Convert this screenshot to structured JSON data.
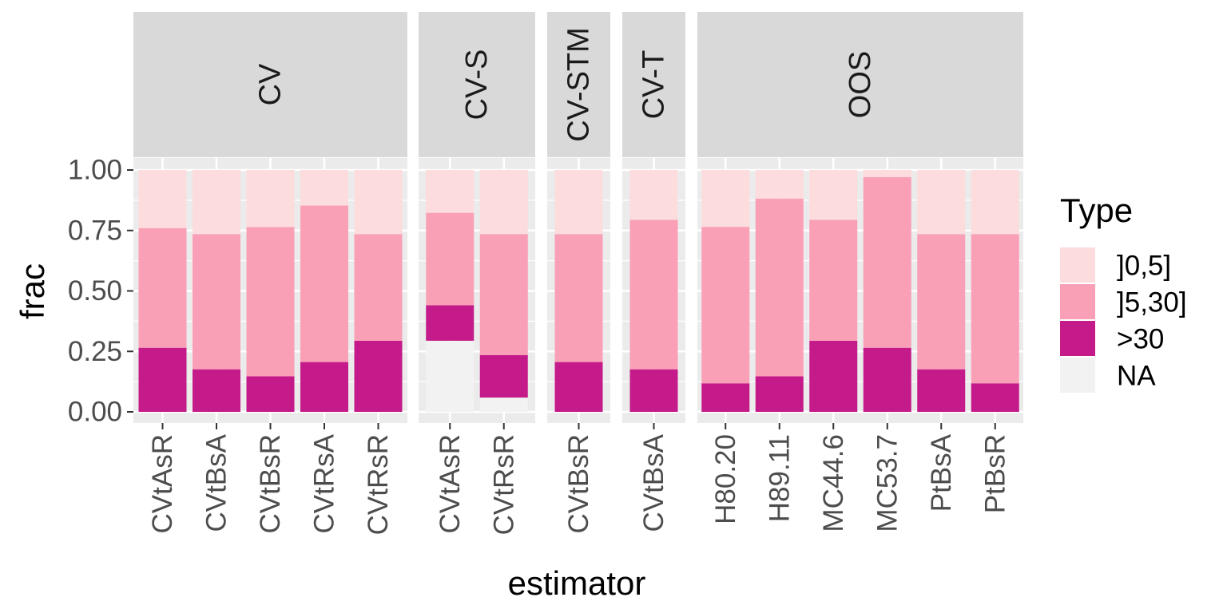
{
  "colors": {
    "panel_bg": "#EBEBEB",
    "strip_bg": "#D9D9D9",
    "grid": "#FFFFFF",
    "tick": "#333333",
    "type_0_5": "#FCDCDD",
    "type_5_30": "#F9A0B7",
    "type_gt30": "#C51B8A",
    "type_na": "#F2F2F2"
  },
  "chart_data": {
    "type": "bar",
    "stacked": true,
    "xlabel": "estimator",
    "ylabel": "frac",
    "ylim": [
      0,
      1
    ],
    "y_ticks": [
      "0.00",
      "0.25",
      "0.50",
      "0.75",
      "1.00"
    ],
    "legend": {
      "title": "Type",
      "position": "right",
      "entries": [
        {
          "label": "]0,5]",
          "color_key": "type_0_5"
        },
        {
          "label": "]5,30]",
          "color_key": "type_5_30"
        },
        {
          "label": ">30",
          "color_key": "type_gt30"
        },
        {
          "label": "NA",
          "color_key": "type_na"
        }
      ]
    },
    "facets": [
      {
        "label": "CV",
        "bars": [
          {
            "category": "CVtAsR",
            "gt30": 0.265,
            "b5_30": 0.495,
            "b0_5": 0.24,
            "na": 0
          },
          {
            "category": "CVtBsA",
            "gt30": 0.176,
            "b5_30": 0.559,
            "b0_5": 0.265,
            "na": 0
          },
          {
            "category": "CVtBsR",
            "gt30": 0.147,
            "b5_30": 0.617,
            "b0_5": 0.236,
            "na": 0
          },
          {
            "category": "CVtRsA",
            "gt30": 0.206,
            "b5_30": 0.647,
            "b0_5": 0.147,
            "na": 0
          },
          {
            "category": "CVtRsR",
            "gt30": 0.294,
            "b5_30": 0.441,
            "b0_5": 0.265,
            "na": 0
          }
        ]
      },
      {
        "label": "CV-S",
        "bars": [
          {
            "category": "CVtAsR",
            "na": 0.294,
            "gt30": 0.147,
            "b5_30": 0.382,
            "b0_5": 0.177
          },
          {
            "category": "CVtRsR",
            "na": 0.059,
            "gt30": 0.176,
            "b5_30": 0.5,
            "b0_5": 0.265
          }
        ]
      },
      {
        "label": "CV-STM",
        "bars": [
          {
            "category": "CVtBsR",
            "gt30": 0.206,
            "b5_30": 0.529,
            "b0_5": 0.265,
            "na": 0
          }
        ]
      },
      {
        "label": "CV-T",
        "bars": [
          {
            "category": "CVtBsA",
            "gt30": 0.176,
            "b5_30": 0.618,
            "b0_5": 0.206,
            "na": 0
          }
        ]
      },
      {
        "label": "OOS",
        "bars": [
          {
            "category": "H80.20",
            "gt30": 0.118,
            "b5_30": 0.647,
            "b0_5": 0.235,
            "na": 0
          },
          {
            "category": "H89.11",
            "gt30": 0.147,
            "b5_30": 0.735,
            "b0_5": 0.118,
            "na": 0
          },
          {
            "category": "MC44.6",
            "gt30": 0.294,
            "b5_30": 0.5,
            "b0_5": 0.206,
            "na": 0
          },
          {
            "category": "MC53.7",
            "gt30": 0.265,
            "b5_30": 0.706,
            "b0_5": 0.029,
            "na": 0
          },
          {
            "category": "PtBsA",
            "gt30": 0.176,
            "b5_30": 0.559,
            "b0_5": 0.265,
            "na": 0
          },
          {
            "category": "PtBsR",
            "gt30": 0.118,
            "b5_30": 0.617,
            "b0_5": 0.265,
            "na": 0
          }
        ]
      }
    ]
  }
}
